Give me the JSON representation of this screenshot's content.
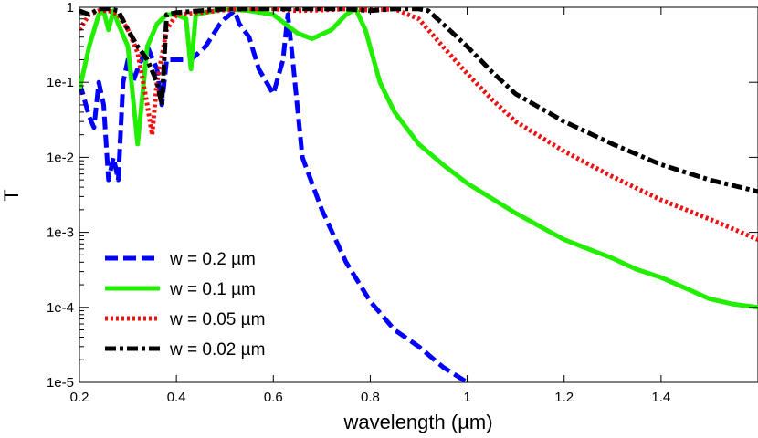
{
  "chart_data": {
    "type": "line",
    "xlabel": "wavelength (µm)",
    "ylabel": "T",
    "xlim": [
      0.2,
      1.6
    ],
    "ylim": [
      1e-05,
      1
    ],
    "yscale": "log",
    "xticks": [
      "0.2",
      "0.4",
      "0.6",
      "0.8",
      "1",
      "1.2",
      "1.4"
    ],
    "xtick_values": [
      0.2,
      0.4,
      0.6,
      0.8,
      1.0,
      1.2,
      1.4
    ],
    "yticks": [
      "1e-5",
      "1e-4",
      "1e-3",
      "1e-2",
      "1e-1",
      "1"
    ],
    "ytick_values": [
      1e-05,
      0.0001,
      0.001,
      0.01,
      0.1,
      1
    ],
    "grid": false,
    "legend_position": "bottom-left",
    "series": [
      {
        "name": "w = 0.2 µm",
        "color": "#0000ff",
        "style": "dashed",
        "x": [
          0.2,
          0.21,
          0.22,
          0.23,
          0.24,
          0.25,
          0.26,
          0.27,
          0.28,
          0.29,
          0.3,
          0.31,
          0.32,
          0.34,
          0.36,
          0.37,
          0.38,
          0.4,
          0.43,
          0.46,
          0.49,
          0.5,
          0.52,
          0.53,
          0.55,
          0.57,
          0.6,
          0.62,
          0.63,
          0.64,
          0.66,
          0.7,
          0.75,
          0.8,
          0.85,
          0.9,
          0.95,
          1.0
        ],
        "y": [
          0.1,
          0.06,
          0.035,
          0.025,
          0.1,
          0.05,
          0.005,
          0.01,
          0.005,
          0.1,
          0.2,
          0.1,
          0.15,
          0.3,
          0.15,
          0.05,
          0.2,
          0.2,
          0.2,
          0.3,
          0.6,
          0.7,
          0.9,
          0.6,
          0.4,
          0.15,
          0.07,
          0.2,
          0.8,
          0.2,
          0.01,
          0.002,
          0.0004,
          0.00012,
          5e-05,
          3e-05,
          1.6e-05,
          1e-05
        ]
      },
      {
        "name": "w = 0.1 µm",
        "color": "#22ee00",
        "style": "solid",
        "x": [
          0.2,
          0.22,
          0.24,
          0.25,
          0.26,
          0.27,
          0.28,
          0.3,
          0.32,
          0.34,
          0.36,
          0.38,
          0.4,
          0.42,
          0.43,
          0.44,
          0.46,
          0.5,
          0.55,
          0.6,
          0.65,
          0.68,
          0.72,
          0.75,
          0.77,
          0.79,
          0.82,
          0.85,
          0.9,
          0.95,
          1.0,
          1.1,
          1.2,
          1.3,
          1.35,
          1.4,
          1.5,
          1.55,
          1.6
        ],
        "y": [
          0.08,
          0.3,
          0.8,
          0.9,
          0.5,
          0.9,
          0.6,
          0.3,
          0.015,
          0.3,
          0.6,
          0.8,
          0.8,
          0.7,
          0.15,
          0.8,
          0.85,
          0.95,
          0.9,
          0.8,
          0.45,
          0.38,
          0.5,
          0.8,
          0.95,
          0.5,
          0.1,
          0.04,
          0.015,
          0.008,
          0.0045,
          0.0018,
          0.0008,
          0.00045,
          0.00032,
          0.00025,
          0.00013,
          0.00011,
          0.0001
        ]
      },
      {
        "name": "w = 0.05 µm",
        "color": "#ee1111",
        "style": "dotted",
        "x": [
          0.2,
          0.22,
          0.24,
          0.26,
          0.28,
          0.3,
          0.32,
          0.34,
          0.35,
          0.36,
          0.38,
          0.4,
          0.45,
          0.5,
          0.55,
          0.6,
          0.65,
          0.7,
          0.75,
          0.8,
          0.85,
          0.9,
          0.95,
          1.0,
          1.05,
          1.1,
          1.2,
          1.3,
          1.4,
          1.5,
          1.55,
          1.6
        ],
        "y": [
          0.5,
          0.8,
          0.9,
          0.9,
          0.8,
          0.5,
          0.25,
          0.05,
          0.02,
          0.1,
          0.5,
          0.8,
          0.85,
          0.92,
          0.95,
          0.95,
          0.9,
          0.92,
          0.95,
          0.92,
          0.95,
          0.7,
          0.3,
          0.13,
          0.06,
          0.03,
          0.012,
          0.0055,
          0.0027,
          0.0015,
          0.0011,
          0.0008
        ]
      },
      {
        "name": "w = 0.02 µm",
        "color": "#000000",
        "style": "dashdot",
        "x": [
          0.2,
          0.22,
          0.24,
          0.26,
          0.28,
          0.3,
          0.32,
          0.34,
          0.36,
          0.37,
          0.38,
          0.4,
          0.45,
          0.5,
          0.55,
          0.6,
          0.65,
          0.7,
          0.75,
          0.8,
          0.85,
          0.9,
          0.92,
          0.95,
          1.0,
          1.05,
          1.1,
          1.2,
          1.3,
          1.4,
          1.5,
          1.6
        ],
        "y": [
          0.9,
          0.8,
          0.95,
          0.95,
          0.9,
          0.5,
          0.3,
          0.2,
          0.1,
          0.05,
          0.8,
          0.85,
          0.9,
          0.95,
          0.95,
          0.95,
          0.95,
          0.95,
          0.95,
          0.9,
          0.95,
          0.95,
          0.9,
          0.6,
          0.3,
          0.14,
          0.07,
          0.03,
          0.015,
          0.008,
          0.005,
          0.0035
        ]
      }
    ]
  }
}
